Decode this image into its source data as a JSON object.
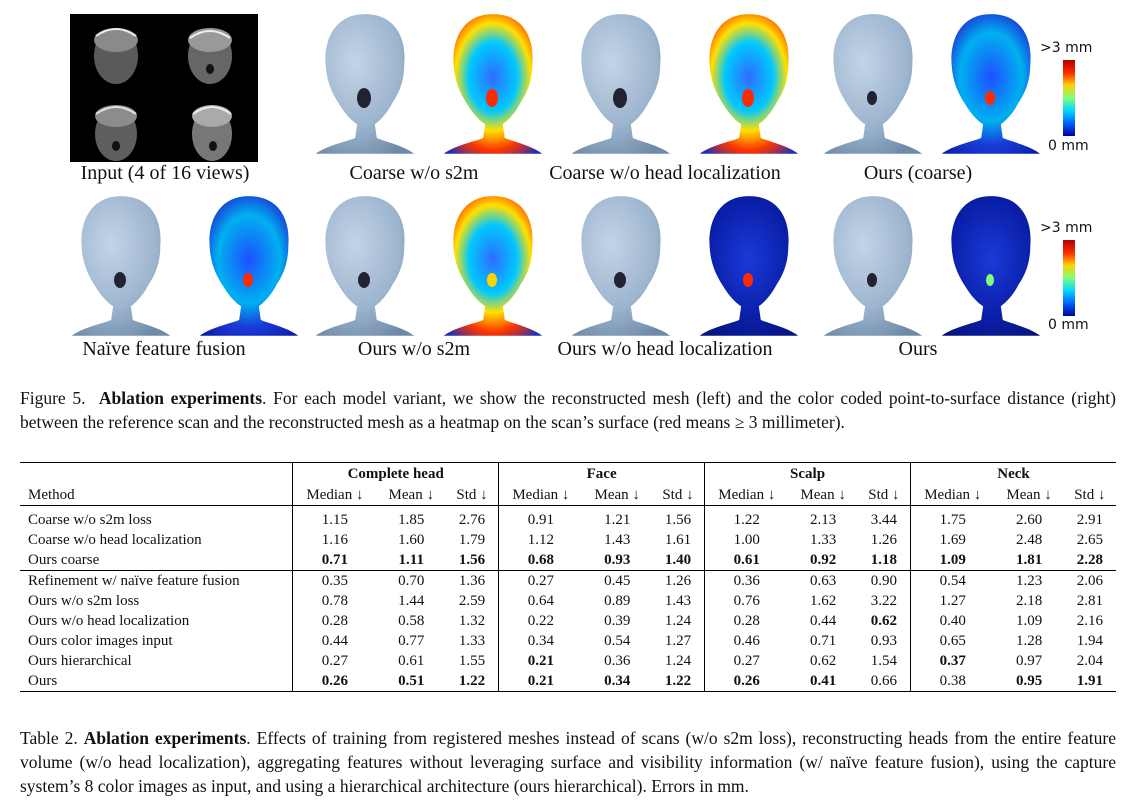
{
  "figure": {
    "row1": {
      "labels": [
        "Input (4 of 16 views)",
        "Coarse w/o s2m",
        "Coarse w/o head localization",
        "Ours (coarse)"
      ]
    },
    "row2": {
      "labels": [
        "Naïve feature fusion",
        "Ours w/o s2m",
        "Ours w/o head localization",
        "Ours"
      ]
    },
    "colorbar": {
      "top_label": ">3 mm",
      "bottom_label": "0 mm"
    },
    "colors": {
      "mesh": "#9db5cf",
      "heat_low": "#0a1fa8",
      "heat_high": "#d40000"
    }
  },
  "figure_caption": {
    "prefix": "Figure 5.",
    "bold": "Ablation experiments",
    "text": ". For each model variant, we show the reconstructed mesh (left) and the color coded point-to-surface distance (right) between the reference scan and the reconstructed mesh as a heatmap on the scan’s surface (red means ≥ 3 millimeter)."
  },
  "table": {
    "method_header": "Method",
    "groups": [
      "Complete head",
      "Face",
      "Scalp",
      "Neck"
    ],
    "subheaders": [
      "Median ↓",
      "Mean ↓",
      "Std ↓"
    ],
    "sections": [
      [
        {
          "method": "Coarse w/o s2m loss",
          "values": [
            "1.15",
            "1.85",
            "2.76",
            "0.91",
            "1.21",
            "1.56",
            "1.22",
            "2.13",
            "3.44",
            "1.75",
            "2.60",
            "2.91"
          ],
          "bold": []
        },
        {
          "method": "Coarse w/o head localization",
          "values": [
            "1.16",
            "1.60",
            "1.79",
            "1.12",
            "1.43",
            "1.61",
            "1.00",
            "1.33",
            "1.26",
            "1.69",
            "2.48",
            "2.65"
          ],
          "bold": []
        },
        {
          "method": "Ours coarse",
          "values": [
            "0.71",
            "1.11",
            "1.56",
            "0.68",
            "0.93",
            "1.40",
            "0.61",
            "0.92",
            "1.18",
            "1.09",
            "1.81",
            "2.28"
          ],
          "bold": [
            0,
            1,
            2,
            3,
            4,
            5,
            6,
            7,
            8,
            9,
            10,
            11
          ]
        }
      ],
      [
        {
          "method": "Refinement w/ naïve feature fusion",
          "values": [
            "0.35",
            "0.70",
            "1.36",
            "0.27",
            "0.45",
            "1.26",
            "0.36",
            "0.63",
            "0.90",
            "0.54",
            "1.23",
            "2.06"
          ],
          "bold": []
        },
        {
          "method": "Ours w/o s2m loss",
          "values": [
            "0.78",
            "1.44",
            "2.59",
            "0.64",
            "0.89",
            "1.43",
            "0.76",
            "1.62",
            "3.22",
            "1.27",
            "2.18",
            "2.81"
          ],
          "bold": []
        },
        {
          "method": "Ours w/o head localization",
          "values": [
            "0.28",
            "0.58",
            "1.32",
            "0.22",
            "0.39",
            "1.24",
            "0.28",
            "0.44",
            "0.62",
            "0.40",
            "1.09",
            "2.16"
          ],
          "bold": [
            8
          ]
        },
        {
          "method": "Ours color images input",
          "values": [
            "0.44",
            "0.77",
            "1.33",
            "0.34",
            "0.54",
            "1.27",
            "0.46",
            "0.71",
            "0.93",
            "0.65",
            "1.28",
            "1.94"
          ],
          "bold": []
        },
        {
          "method": "Ours hierarchical",
          "values": [
            "0.27",
            "0.61",
            "1.55",
            "0.21",
            "0.36",
            "1.24",
            "0.27",
            "0.62",
            "1.54",
            "0.37",
            "0.97",
            "2.04"
          ],
          "bold": [
            3,
            9
          ]
        },
        {
          "method": "Ours",
          "values": [
            "0.26",
            "0.51",
            "1.22",
            "0.21",
            "0.34",
            "1.22",
            "0.26",
            "0.41",
            "0.66",
            "0.38",
            "0.95",
            "1.91"
          ],
          "bold": [
            0,
            1,
            2,
            3,
            4,
            5,
            6,
            7,
            10,
            11
          ]
        }
      ]
    ]
  },
  "table_caption": {
    "prefix": "Table 2.",
    "bold": "Ablation experiments",
    "text": ". Effects of training from registered meshes instead of scans (w/o s2m loss), reconstructing heads from the entire feature volume (w/o head localization), aggregating features without leveraging surface and visibility information (w/ naïve feature fusion), using the capture system’s 8 color images as input, and using a hierarchical architecture (ours hierarchical). Errors in mm."
  }
}
